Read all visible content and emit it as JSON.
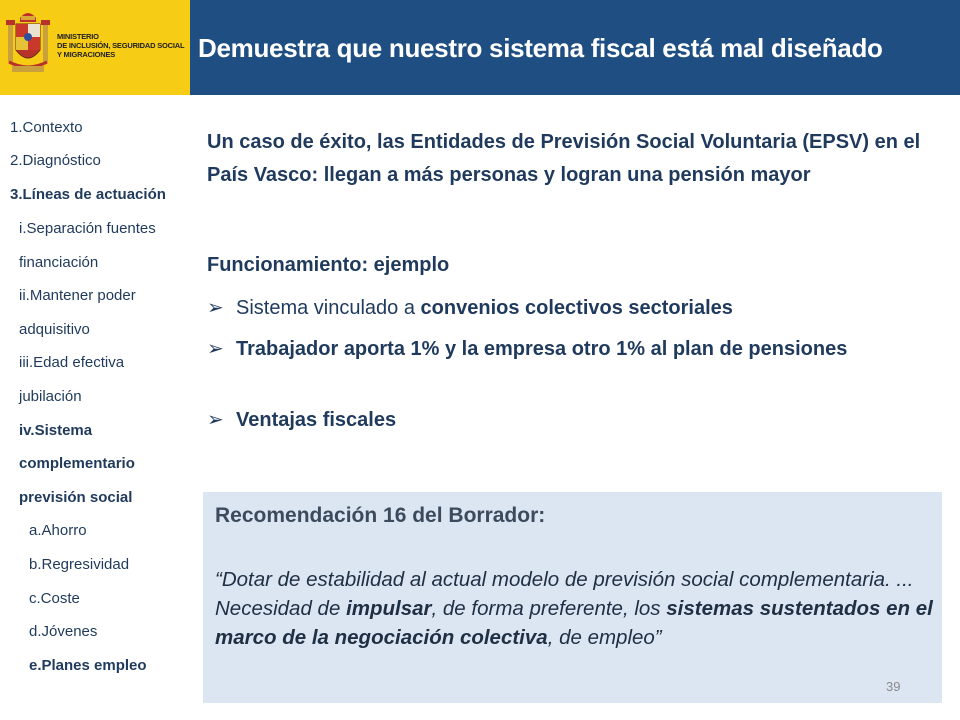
{
  "header": {
    "ministry_lines": [
      "MINISTERIO",
      "DE INCLUSIÓN, SEGURIDAD SOCIAL",
      "Y MIGRACIONES"
    ],
    "title": "Demuestra que nuestro sistema fiscal está mal diseñado"
  },
  "nav": {
    "items": [
      "1.Contexto",
      "2.Diagnóstico",
      "3.Líneas de actuación",
      "i.Separación fuentes",
      "financiación",
      "ii.Mantener poder",
      "adquisitivo",
      "iii.Edad efectiva",
      "jubilación",
      "iv.Sistema",
      "complementario",
      "previsión social",
      "a.Ahorro",
      "b.Regresividad",
      "c.Coste",
      "d.Jóvenes",
      "e.Planes empleo"
    ]
  },
  "main": {
    "lead": "Un caso de éxito, las Entidades de Previsión Social Voluntaria (EPSV) en el País Vasco: llegan a más personas y logran una pensión mayor",
    "func_heading": "Funcionamiento: ejemplo",
    "bullet1_pre": "Sistema vinculado a ",
    "bullet1_bold": "convenios colectivos sectoriales",
    "bullet2": "Trabajador aporta 1% y la empresa otro 1% al plan de pensiones",
    "bullet3": "Ventajas fiscales"
  },
  "recommendation": {
    "title": "Recomendación 16 del Borrador:",
    "q1": "“Dotar de estabilidad al actual modelo de previsión social complementaria. ... Necesidad de ",
    "q2": "impulsar",
    "q3": ", de forma preferente, los ",
    "q4": "sistemas sustentados en el marco de la negociación colectiva",
    "q5": ", de empleo”"
  },
  "page_number": "39",
  "colors": {
    "header_bar": "#1f4f82",
    "logo_bg": "#f6cc14",
    "text": "#1f3a5c",
    "rec_bg": "#dce6f2"
  }
}
